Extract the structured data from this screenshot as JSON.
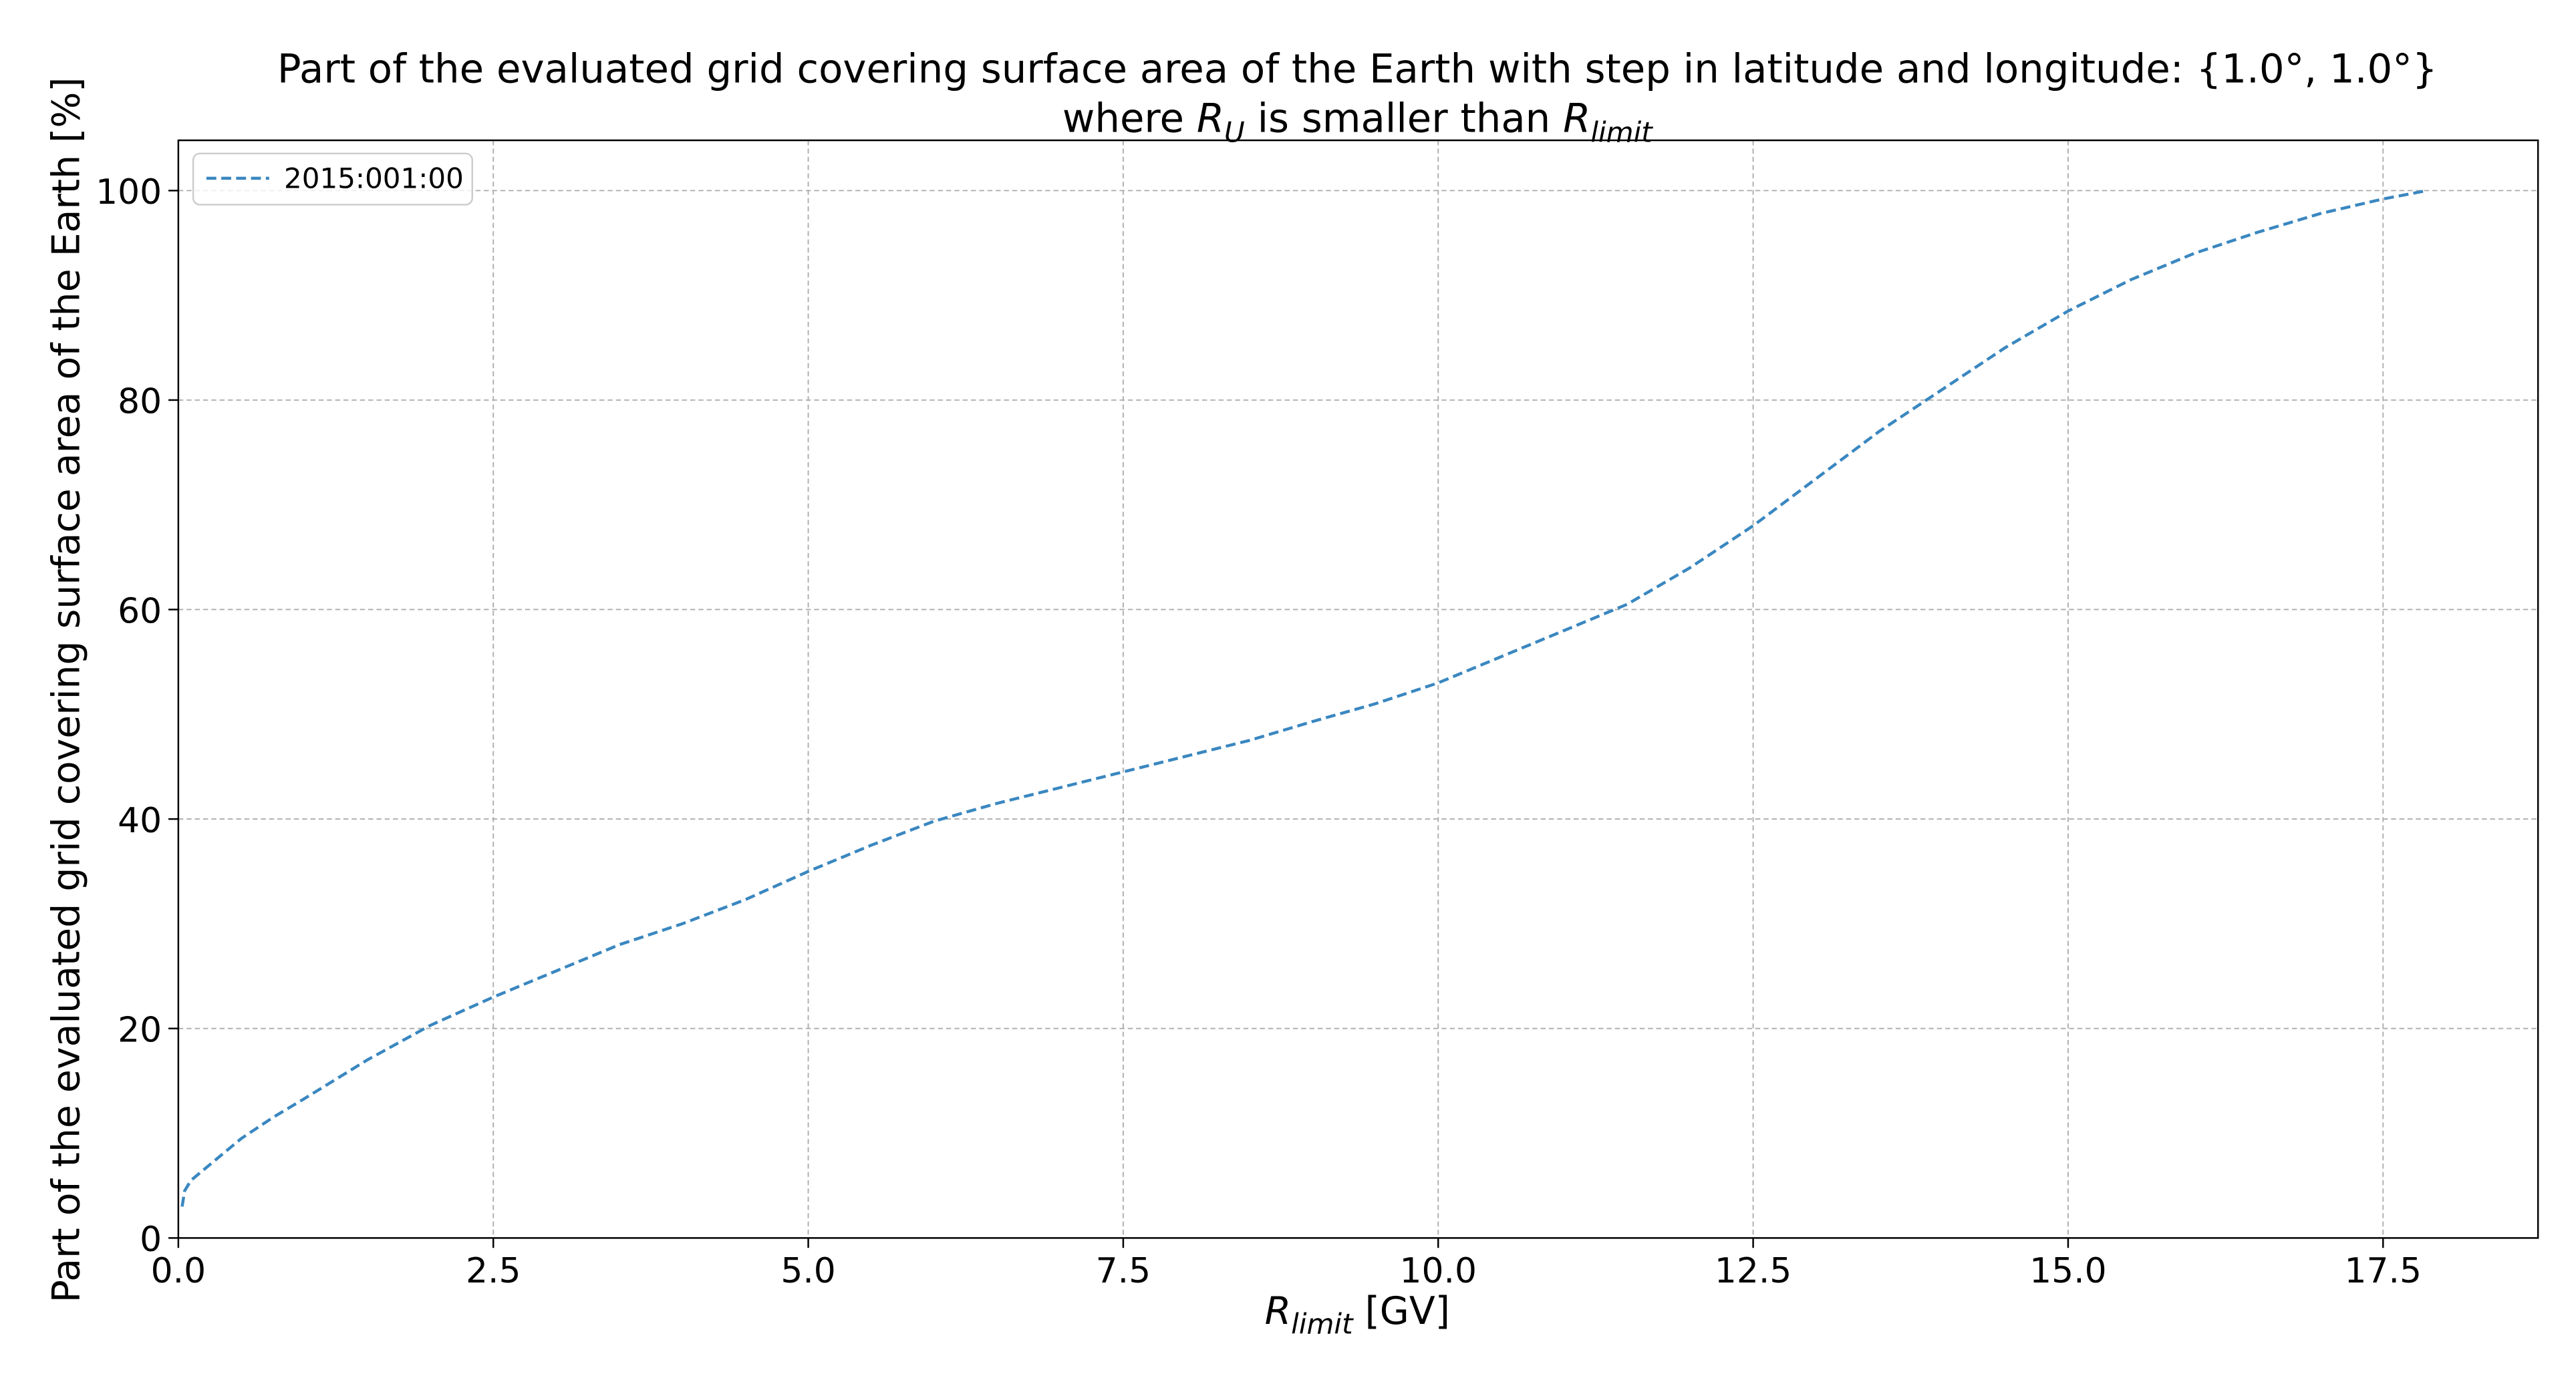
{
  "chart_data": {
    "type": "line",
    "title": {
      "line1": "Part of the evaluated grid covering surface area of the Earth with step in latitude and longitude: {1.0°, 1.0°}",
      "line2": [
        "where ",
        "R",
        "U",
        " is smaller than ",
        "R",
        "limit"
      ]
    },
    "xlabel": [
      "R",
      "limit",
      " [GV]"
    ],
    "ylabel": "Part of the evaluated grid covering surface area of the Earth  [%]",
    "xlim": [
      0,
      18.73
    ],
    "ylim": [
      0,
      104.8
    ],
    "xticks": [
      {
        "value": 0,
        "label": "0.0"
      },
      2.5,
      {
        "value": 5,
        "label": "5.0"
      },
      7.5,
      {
        "value": 10,
        "label": "10.0"
      },
      12.5,
      {
        "value": 15,
        "label": "15.0"
      },
      17.5
    ],
    "yticks": [
      0,
      20,
      40,
      60,
      80,
      100
    ],
    "grid": true,
    "legend": "upper left",
    "series": [
      {
        "name": "2015:001:00",
        "color": "#3a87c0",
        "dash": true,
        "x": [
          0.03,
          0.05,
          0.1,
          0.3,
          0.5,
          0.75,
          1,
          1.5,
          2,
          2.5,
          3,
          3.5,
          4,
          4.5,
          5,
          5.5,
          6,
          6.5,
          7,
          7.5,
          8,
          8.5,
          9,
          9.5,
          10,
          10.5,
          11,
          11.5,
          12,
          12.5,
          13,
          13.5,
          14,
          14.5,
          15,
          15.5,
          16,
          16.5,
          17,
          17.5,
          17.85
        ],
        "values": [
          3,
          4.5,
          5.5,
          7.5,
          9.5,
          11.5,
          13.3,
          17,
          20.3,
          23,
          25.5,
          28,
          30,
          32.3,
          35,
          37.5,
          39.8,
          41.5,
          43,
          44.5,
          46,
          47.5,
          49.3,
          51,
          53,
          55.5,
          58,
          60.5,
          64,
          68,
          72.5,
          77,
          81,
          85,
          88.5,
          91.5,
          94,
          96,
          97.8,
          99.2,
          100
        ]
      }
    ]
  }
}
